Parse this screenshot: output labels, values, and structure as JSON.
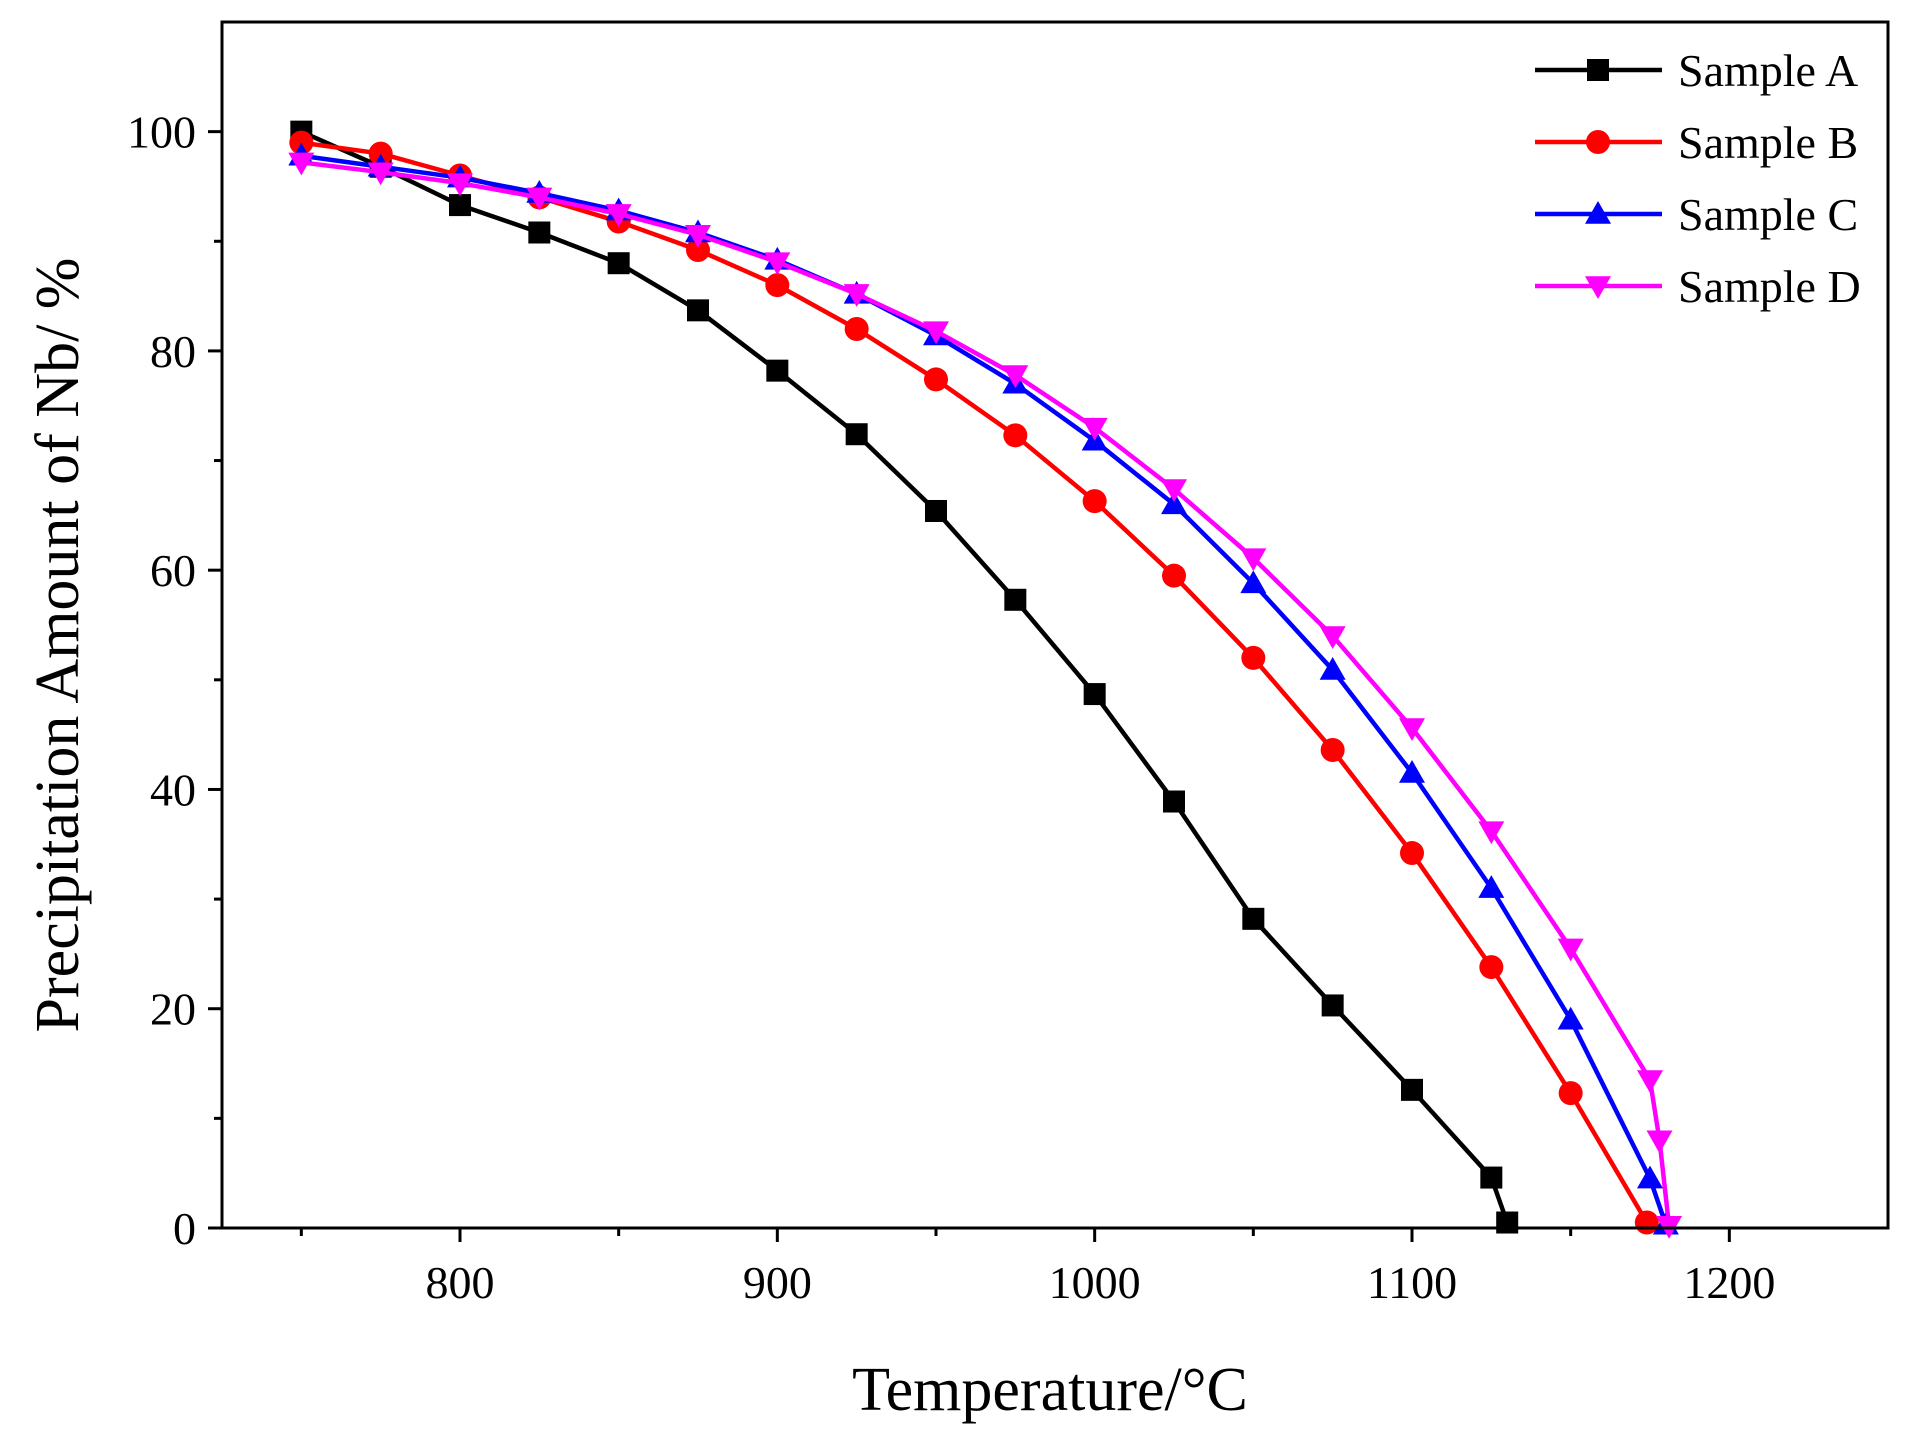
{
  "chart_data": {
    "type": "line",
    "title": "",
    "xlabel": "Temperature/°C",
    "ylabel": "Precipitation Amount of Nb/ %",
    "xlim": [
      725,
      1250
    ],
    "ylim": [
      0,
      110
    ],
    "x_ticks": [
      800,
      900,
      1000,
      1100,
      1200
    ],
    "x_tick_labels": [
      "800",
      "900",
      "1000",
      "1100",
      "1200"
    ],
    "x_minor_ticks": [
      750,
      850,
      950,
      1050,
      1150
    ],
    "y_ticks": [
      0,
      20,
      40,
      60,
      80,
      100
    ],
    "y_tick_labels": [
      "0",
      "20",
      "40",
      "60",
      "80",
      "100"
    ],
    "y_minor_ticks": [
      10,
      30,
      50,
      70,
      90
    ],
    "grid": false,
    "legend_position": "top-right",
    "series": [
      {
        "name": "Sample A",
        "color": "#000000",
        "marker": "square",
        "x": [
          750,
          775,
          800,
          825,
          850,
          875,
          900,
          925,
          950,
          975,
          1000,
          1025,
          1050,
          1075,
          1100,
          1125,
          1130
        ],
        "y": [
          100,
          96.8,
          93.3,
          90.8,
          88.0,
          83.7,
          78.2,
          72.4,
          65.4,
          57.3,
          48.7,
          38.9,
          28.2,
          20.3,
          12.6,
          4.6,
          0.5
        ]
      },
      {
        "name": "Sample B",
        "color": "#ff0000",
        "marker": "circle",
        "x": [
          750,
          775,
          800,
          825,
          850,
          875,
          900,
          925,
          950,
          975,
          1000,
          1025,
          1050,
          1075,
          1100,
          1125,
          1150,
          1174
        ],
        "y": [
          99.0,
          98.0,
          96.0,
          94.0,
          91.8,
          89.2,
          86.0,
          82.0,
          77.4,
          72.3,
          66.3,
          59.5,
          52.0,
          43.6,
          34.2,
          23.8,
          12.3,
          0.5
        ]
      },
      {
        "name": "Sample C",
        "color": "#0000ff",
        "marker": "triangle-up",
        "x": [
          750,
          775,
          800,
          825,
          850,
          875,
          900,
          925,
          950,
          975,
          1000,
          1025,
          1050,
          1075,
          1100,
          1125,
          1150,
          1175,
          1180
        ],
        "y": [
          97.8,
          96.8,
          95.8,
          94.4,
          92.8,
          90.8,
          88.3,
          85.2,
          81.4,
          77.0,
          71.8,
          66.0,
          58.8,
          50.9,
          41.5,
          31.0,
          19.0,
          4.5,
          0.3
        ]
      },
      {
        "name": "Sample D",
        "color": "#ff00ff",
        "marker": "triangle-down",
        "x": [
          750,
          775,
          800,
          825,
          850,
          875,
          900,
          925,
          950,
          975,
          1000,
          1025,
          1050,
          1075,
          1100,
          1125,
          1150,
          1175,
          1178,
          1181
        ],
        "y": [
          97.2,
          96.3,
          95.3,
          94.0,
          92.5,
          90.6,
          88.1,
          85.2,
          81.8,
          77.8,
          73.0,
          67.4,
          61.1,
          54.0,
          45.6,
          36.2,
          25.5,
          13.5,
          8.0,
          0.2
        ]
      }
    ]
  }
}
